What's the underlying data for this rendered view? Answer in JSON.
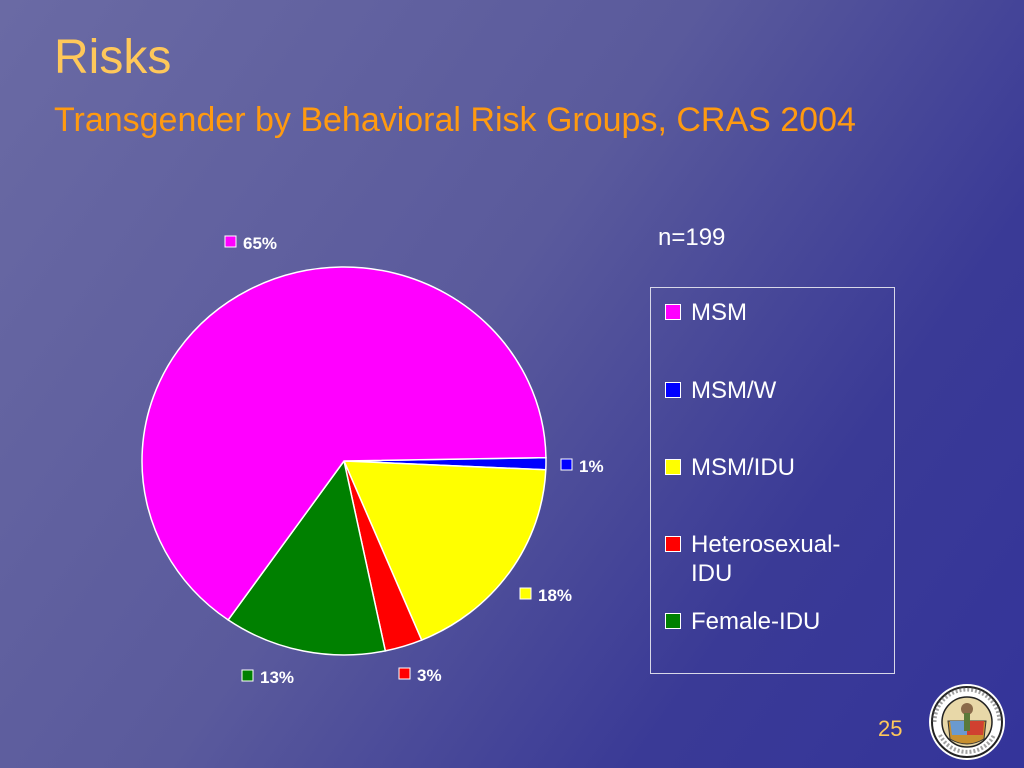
{
  "slide": {
    "title": "Risks",
    "subtitle": "Transgender by Behavioral Risk Groups, CRAS 2004",
    "sample_size": "n=199",
    "page_number": "25"
  },
  "seal": {
    "text_top": "COUNTY OF LOS ANGELES",
    "text_bottom": "CALIFORNIA"
  },
  "colors": {
    "title": "#ffc85a",
    "subtitle": "#ff9a10"
  },
  "chart_data": {
    "type": "pie",
    "title": "",
    "categories": [
      "MSM",
      "MSM/W",
      "MSM/IDU",
      "Heterosexual-IDU",
      "Female-IDU"
    ],
    "values": [
      65,
      1,
      18,
      3,
      13
    ],
    "labels": [
      "65%",
      "1%",
      "18%",
      "3%",
      "13%"
    ],
    "colors": [
      "#ff00ff",
      "#0000ff",
      "#ffff00",
      "#ff0000",
      "#008000"
    ],
    "legend_position": "right"
  }
}
